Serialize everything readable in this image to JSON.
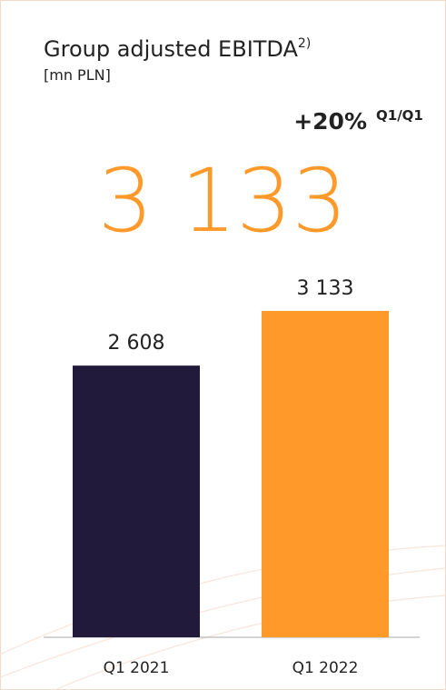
{
  "chart_data": {
    "type": "bar",
    "title": "Group adjusted EBITDA",
    "title_note": "2)",
    "subtitle": "[mn PLN]",
    "annotation": {
      "change": "+20%",
      "period": "Q1/Q1"
    },
    "headline": "3 133",
    "categories": [
      "Q1 2021",
      "Q1 2022"
    ],
    "values": [
      2608,
      3133
    ],
    "value_labels": [
      "2 608",
      "3 133"
    ],
    "colors": [
      "#221a3a",
      "#ff9a2a"
    ]
  }
}
